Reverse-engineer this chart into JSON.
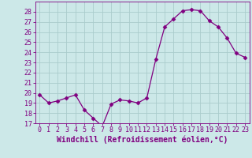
{
  "x": [
    0,
    1,
    2,
    3,
    4,
    5,
    6,
    7,
    8,
    9,
    10,
    11,
    12,
    13,
    14,
    15,
    16,
    17,
    18,
    19,
    20,
    21,
    22,
    23
  ],
  "y": [
    19.8,
    19.0,
    19.2,
    19.5,
    19.8,
    18.3,
    17.5,
    16.7,
    18.9,
    19.3,
    19.2,
    19.0,
    19.5,
    23.3,
    26.5,
    27.3,
    28.1,
    28.2,
    28.1,
    27.1,
    26.5,
    25.4,
    23.9,
    23.5
  ],
  "line_color": "#800080",
  "marker": "D",
  "markersize": 2.5,
  "linewidth": 0.9,
  "xlabel": "Windchill (Refroidissement éolien,°C)",
  "xlim": [
    -0.5,
    23.5
  ],
  "ylim": [
    17,
    29
  ],
  "yticks": [
    17,
    18,
    19,
    20,
    21,
    22,
    23,
    24,
    25,
    26,
    27,
    28
  ],
  "xticks": [
    0,
    1,
    2,
    3,
    4,
    5,
    6,
    7,
    8,
    9,
    10,
    11,
    12,
    13,
    14,
    15,
    16,
    17,
    18,
    19,
    20,
    21,
    22,
    23
  ],
  "bg_color": "#cce8e8",
  "grid_color": "#aacccc",
  "line_color_spine": "#800080",
  "xlabel_color": "#800080",
  "tick_color": "#800080",
  "xlabel_fontsize": 7,
  "tick_fontsize": 6
}
